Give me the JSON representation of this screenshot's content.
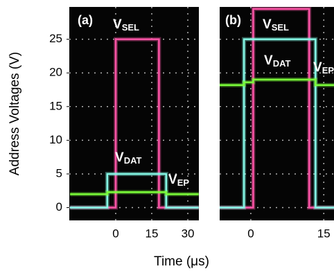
{
  "chart_data": [
    {
      "type": "line",
      "panel": "(a)",
      "ylabel": "Address Voltages (V)",
      "xlabel": "Time (μs)",
      "x": [
        -19,
        -3.5,
        -3.5,
        0,
        0,
        18,
        18,
        21,
        21,
        34.5
      ],
      "xlim": [
        -19.3,
        34.6
      ],
      "xticks": [
        0,
        15,
        30
      ],
      "ylim": [
        -1.9,
        29.8
      ],
      "yticks": [
        0,
        5,
        10,
        15,
        20,
        25
      ],
      "grid": true,
      "series": [
        {
          "label": "V",
          "label_sub": "SEL",
          "color": "#ff55a8",
          "values": [
            0,
            0,
            0,
            0,
            25,
            25,
            0,
            0,
            0,
            0
          ]
        },
        {
          "label": "V",
          "label_sub": "DAT",
          "color": "#86fbe8",
          "values": [
            0,
            0,
            5,
            5,
            5,
            5,
            5,
            5,
            0,
            0
          ]
        },
        {
          "label": "V",
          "label_sub": "EP",
          "color": "#7cff3a",
          "values": [
            2,
            2,
            2.3,
            2.3,
            2.3,
            2.3,
            2.3,
            2.3,
            2,
            2
          ]
        }
      ]
    },
    {
      "type": "line",
      "panel": "(b)",
      "x": [
        -6.4,
        -1.4,
        -1.4,
        0.5,
        0.5,
        12,
        12,
        13.3,
        13.3,
        17.1
      ],
      "xlim": [
        -6.4,
        17.1
      ],
      "xticks": [
        0,
        15
      ],
      "ylim": [
        -1.9,
        29.8
      ],
      "yticks": [
        0,
        5,
        10,
        15,
        20,
        25
      ],
      "grid": true,
      "series": [
        {
          "label": "V",
          "label_sub": "SEL",
          "color": "#ff55a8",
          "values": [
            0,
            0,
            0,
            0,
            29.5,
            29.5,
            0,
            0,
            0,
            0
          ]
        },
        {
          "label": "V",
          "label_sub": "DAT",
          "color": "#86fbe8",
          "values": [
            0,
            0,
            25,
            25,
            25,
            25,
            25,
            25,
            0,
            0
          ]
        },
        {
          "label": "V",
          "label_sub": "EP",
          "color": "#7cff3a",
          "values": [
            18.2,
            18.2,
            18.6,
            18.6,
            19,
            19,
            19,
            19,
            18.2,
            18.2
          ]
        }
      ]
    }
  ]
}
